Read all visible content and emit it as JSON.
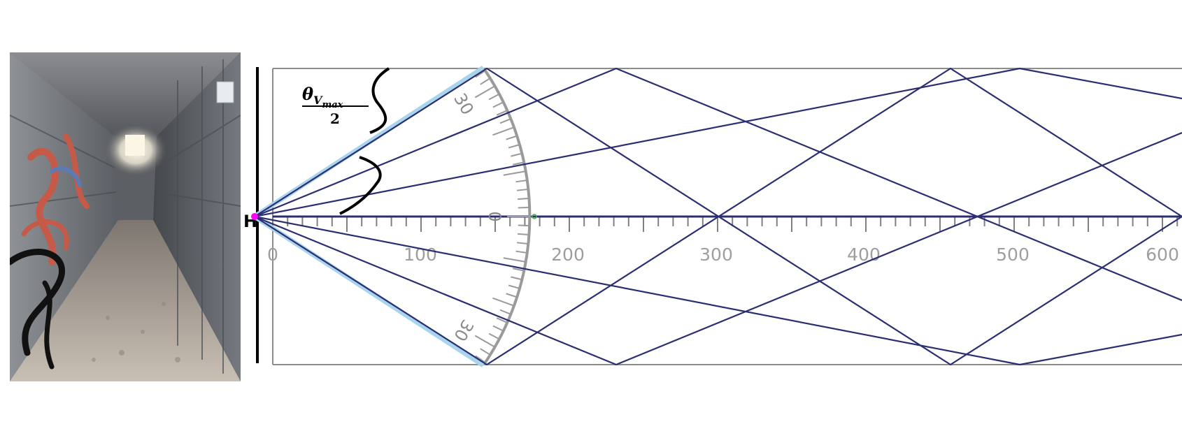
{
  "photo": {
    "subject": "concrete tunnel corridor with graffiti",
    "colors": {
      "wall": "#6a6d72",
      "floor": "#b9afa3",
      "graffiti": "#c65a48",
      "light": "#fffbea"
    }
  },
  "diagram": {
    "height_label": "H",
    "angle_label": {
      "theta": "θ",
      "subscript_v": "V",
      "subscript_max": "max",
      "denominator": "2"
    },
    "axis_ticks": [
      "0",
      "100",
      "200",
      "300",
      "400",
      "500",
      "600"
    ],
    "protractor_labels": {
      "top": "30",
      "middle": "0",
      "bottom": "30"
    },
    "colors": {
      "rays": "#2b2f72",
      "boundary": "#a9d4ee",
      "walls": "#8c8c8c",
      "source": "#ff00ff",
      "protractor": "#9a9a9a"
    }
  }
}
